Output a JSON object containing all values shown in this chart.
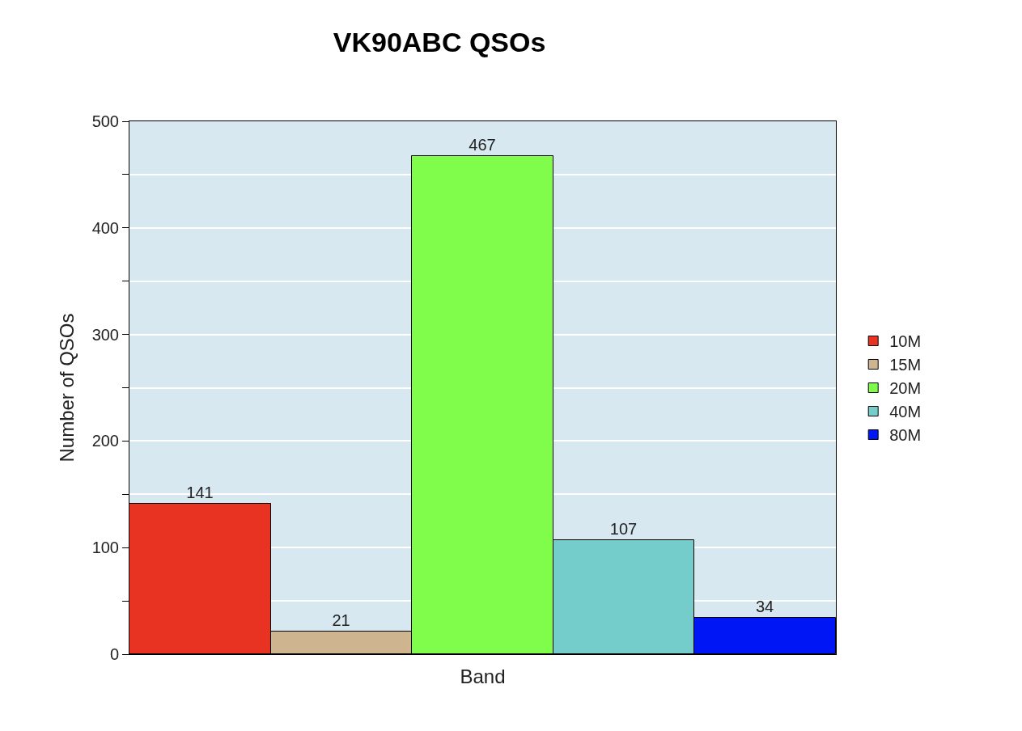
{
  "chart_data": {
    "type": "bar",
    "title": "VK90ABC QSOs",
    "xlabel": "Band",
    "ylabel": "Number of QSOs",
    "categories": [
      null
    ],
    "series": [
      {
        "name": "10M",
        "color": "#e83323",
        "values": [
          141
        ]
      },
      {
        "name": "15M",
        "color": "#ceb48f",
        "values": [
          21
        ]
      },
      {
        "name": "20M",
        "color": "#80fc4b",
        "values": [
          467
        ]
      },
      {
        "name": "40M",
        "color": "#74cdca",
        "values": [
          107
        ]
      },
      {
        "name": "80M",
        "color": "#0016f5",
        "values": [
          34
        ]
      }
    ],
    "ylim": [
      0,
      500
    ],
    "yticks": [
      0,
      {
        "value": 50,
        "label": null
      },
      100,
      {
        "value": 150,
        "label": null
      },
      200,
      {
        "value": 250,
        "label": null
      },
      300,
      {
        "value": 350,
        "label": null
      },
      400,
      {
        "value": 450,
        "label": null
      },
      500
    ],
    "grid": "y",
    "legend": "right",
    "data_labels": true
  }
}
